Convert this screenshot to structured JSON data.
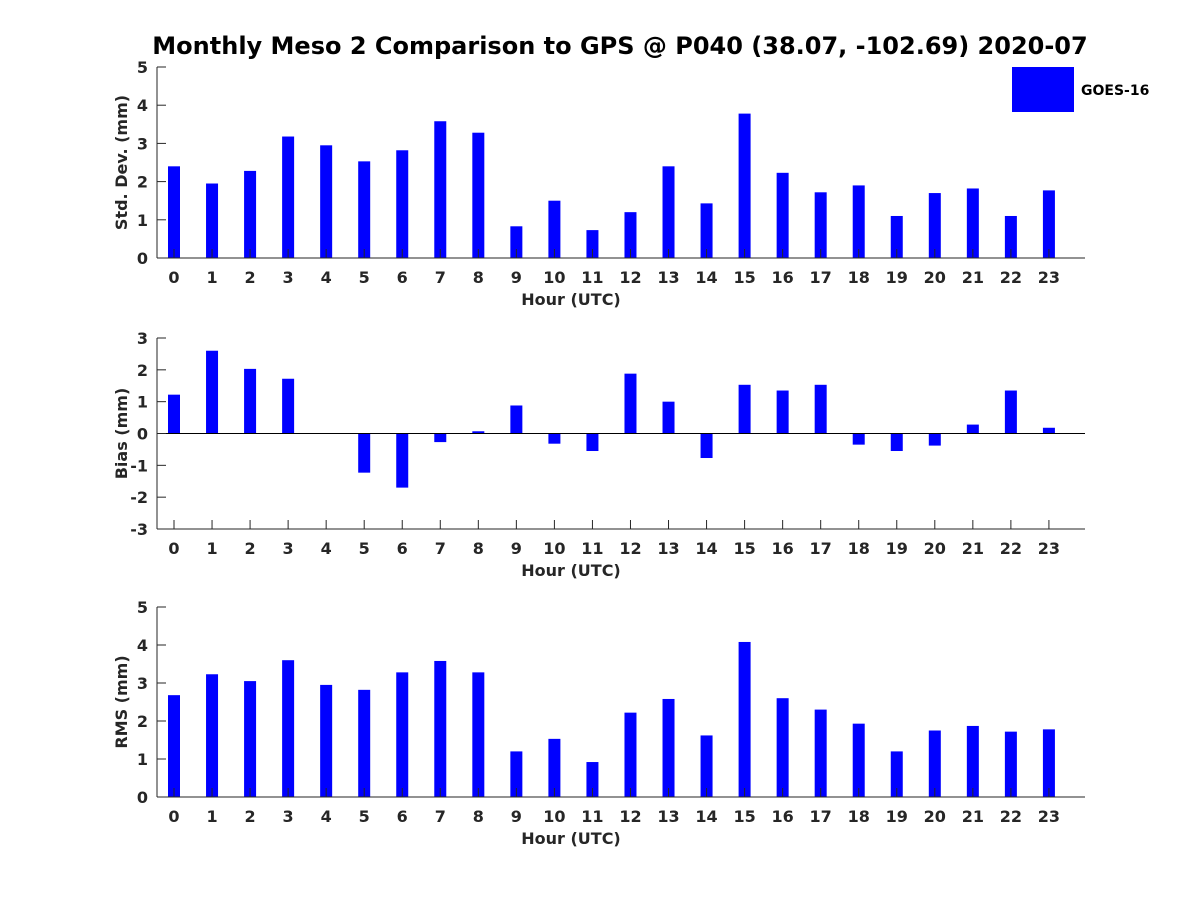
{
  "title": "Monthly Meso 2 Comparison to GPS @ P040 (38.07, -102.69) 2020-07",
  "legend": {
    "label": "GOES-16",
    "color": "#0000ff",
    "placement": "top-right"
  },
  "chart_data": [
    {
      "type": "bar",
      "categories": [
        "0",
        "1",
        "2",
        "3",
        "4",
        "5",
        "6",
        "7",
        "8",
        "9",
        "10",
        "11",
        "12",
        "13",
        "14",
        "15",
        "16",
        "17",
        "18",
        "19",
        "20",
        "21",
        "22",
        "23"
      ],
      "series": [
        {
          "name": "GOES-16",
          "color": "#0000ff",
          "values": [
            2.4,
            1.95,
            2.28,
            3.18,
            2.95,
            2.53,
            2.82,
            3.58,
            3.28,
            0.83,
            1.5,
            0.73,
            1.2,
            2.4,
            1.43,
            3.78,
            2.23,
            1.72,
            1.9,
            1.1,
            1.7,
            1.82,
            1.1,
            1.77
          ]
        }
      ],
      "xlabel": "Hour (UTC)",
      "ylabel": "Std. Dev. (mm)",
      "ylim": [
        0,
        5
      ],
      "yticks": [
        "0",
        "1",
        "2",
        "3",
        "4",
        "5"
      ],
      "grid": false
    },
    {
      "type": "bar",
      "categories": [
        "0",
        "1",
        "2",
        "3",
        "4",
        "5",
        "6",
        "7",
        "8",
        "9",
        "10",
        "11",
        "12",
        "13",
        "14",
        "15",
        "16",
        "17",
        "18",
        "19",
        "20",
        "21",
        "22",
        "23"
      ],
      "series": [
        {
          "name": "GOES-16",
          "color": "#0000ff",
          "values": [
            1.22,
            2.6,
            2.03,
            1.72,
            0.0,
            -1.23,
            -1.7,
            -0.27,
            0.07,
            0.88,
            -0.32,
            -0.55,
            1.88,
            1.0,
            -0.77,
            1.53,
            1.35,
            1.53,
            -0.35,
            -0.55,
            -0.38,
            0.28,
            1.35,
            0.18
          ]
        }
      ],
      "xlabel": "Hour (UTC)",
      "ylabel": "Bias (mm)",
      "ylim": [
        -3,
        3
      ],
      "yticks": [
        "-3",
        "-2",
        "-1",
        "0",
        "1",
        "2",
        "3"
      ],
      "grid": false
    },
    {
      "type": "bar",
      "categories": [
        "0",
        "1",
        "2",
        "3",
        "4",
        "5",
        "6",
        "7",
        "8",
        "9",
        "10",
        "11",
        "12",
        "13",
        "14",
        "15",
        "16",
        "17",
        "18",
        "19",
        "20",
        "21",
        "22",
        "23"
      ],
      "series": [
        {
          "name": "GOES-16",
          "color": "#0000ff",
          "values": [
            2.68,
            3.23,
            3.05,
            3.6,
            2.95,
            2.82,
            3.28,
            3.58,
            3.28,
            1.2,
            1.53,
            0.92,
            2.22,
            2.58,
            1.62,
            4.08,
            2.6,
            2.3,
            1.93,
            1.2,
            1.75,
            1.87,
            1.72,
            1.78
          ]
        }
      ],
      "xlabel": "Hour (UTC)",
      "ylabel": "RMS (mm)",
      "ylim": [
        0,
        5
      ],
      "yticks": [
        "0",
        "1",
        "2",
        "3",
        "4",
        "5"
      ],
      "grid": false
    }
  ]
}
